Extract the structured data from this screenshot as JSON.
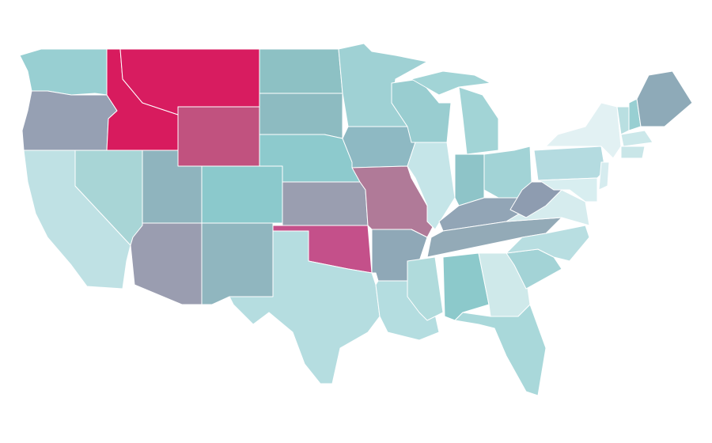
{
  "map": {
    "region_fills": [
      "#98cfd2",
      "#96a0b3",
      "#bfe1e4",
      "#a8d5d6",
      "#d81b5e",
      "#d81c60",
      "#c1527f",
      "#8fb4be",
      "#8bc9cc",
      "#9a9db0",
      "#90b6bf",
      "#8dc1c4",
      "#8dbbc1",
      "#8dcacd",
      "#9a9eb0",
      "#c4508a",
      "#b5dde0",
      "#9fd1d4",
      "#8eb9c3",
      "#b07a98",
      "#8fa8b7",
      "#b4dde0",
      "#99cdd0",
      "#c5e5e8",
      "#a2d4d6",
      "#a2d4d6",
      "#8ec4c8",
      "#a2d3d6",
      "#92a5b6",
      "#93aab7",
      "#b0dbdc",
      "#8cc9cb",
      "#cfe9ea",
      "#a9d8da",
      "#a3d3d6",
      "#b8dee1",
      "#d6ecee",
      "#8e9cb0",
      "#b4dbe0",
      "#e2f1f3",
      "#d8eef0",
      "#d6ecef",
      "#b9dfe1",
      "#98cfd2",
      "#8eaab8",
      "#cce8ea",
      "#c9e6e8"
    ]
  }
}
